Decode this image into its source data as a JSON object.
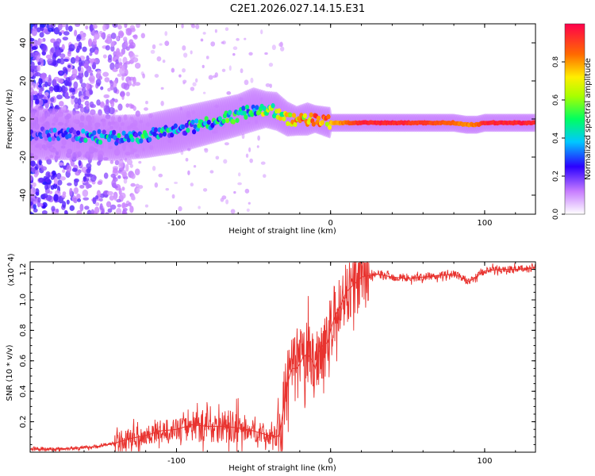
{
  "chart_data": [
    {
      "type": "heatmap",
      "title": "C2E1.2026.027.14.15.E31",
      "xlabel": "Height of straight line (km)",
      "ylabel": "Frequency (Hz)",
      "xlim": [
        -195,
        133
      ],
      "ylim": [
        -50,
        50
      ],
      "x_ticks": [
        -100,
        0,
        100
      ],
      "y_ticks": [
        -40,
        -20,
        0,
        20,
        40
      ],
      "colorbar": {
        "label": "Normalized spectral amplitude",
        "range": [
          0,
          1
        ],
        "ticks": [
          0.0,
          0.2,
          0.4,
          0.6,
          0.8
        ]
      },
      "ridge": {
        "x": [
          -195,
          -180,
          -160,
          -140,
          -120,
          -100,
          -80,
          -60,
          -50,
          -42,
          -35,
          -28,
          -22,
          -15,
          -10,
          -5,
          0,
          20,
          40,
          60,
          80,
          88,
          95,
          100,
          133
        ],
        "freq": [
          -8,
          -8,
          -9,
          -10,
          -9,
          -6,
          -2,
          2,
          5,
          5,
          4,
          0,
          -1,
          0,
          0,
          -1,
          -2,
          -2,
          -2,
          -2,
          -2,
          -3,
          -3,
          -2,
          -2
        ],
        "amplitude": [
          0.15,
          0.2,
          0.3,
          0.35,
          0.4,
          0.35,
          0.4,
          0.45,
          0.4,
          0.6,
          0.55,
          0.65,
          0.8,
          0.7,
          0.85,
          0.8,
          0.75,
          0.95,
          0.95,
          0.9,
          0.85,
          0.8,
          0.85,
          0.95,
          0.95
        ]
      }
    },
    {
      "type": "line",
      "title": "",
      "xlabel": "Height of straight line (km)",
      "ylabel": "SNR (10 * v/v)",
      "y_multiplier": "(x10^4)",
      "xlim": [
        -195,
        133
      ],
      "ylim": [
        0,
        1.25
      ],
      "x_ticks": [
        -100,
        0,
        100
      ],
      "y_ticks": [
        0.2,
        0.4,
        0.6,
        0.8,
        1.0,
        1.2
      ],
      "color": "#e8322e",
      "series": [
        {
          "name": "SNR",
          "x": [
            -195,
            -180,
            -160,
            -150,
            -140,
            -130,
            -120,
            -110,
            -100,
            -90,
            -80,
            -70,
            -60,
            -50,
            -40,
            -35,
            -33,
            -30,
            -28,
            -25,
            -22,
            -20,
            -18,
            -15,
            -12,
            -10,
            -8,
            -5,
            -2,
            0,
            3,
            6,
            10,
            15,
            20,
            25,
            30,
            40,
            50,
            60,
            70,
            80,
            90,
            100,
            110,
            120,
            133
          ],
          "y": [
            0.02,
            0.02,
            0.03,
            0.04,
            0.06,
            0.09,
            0.11,
            0.14,
            0.15,
            0.18,
            0.17,
            0.17,
            0.16,
            0.14,
            0.11,
            0.1,
            0.12,
            0.33,
            0.45,
            0.55,
            0.55,
            0.58,
            0.62,
            0.65,
            0.6,
            0.55,
            0.65,
            0.7,
            0.72,
            0.8,
            0.9,
            0.95,
            1.05,
            1.1,
            1.15,
            1.16,
            1.17,
            1.15,
            1.14,
            1.15,
            1.16,
            1.17,
            1.12,
            1.19,
            1.2,
            1.2,
            1.21
          ]
        }
      ]
    }
  ]
}
